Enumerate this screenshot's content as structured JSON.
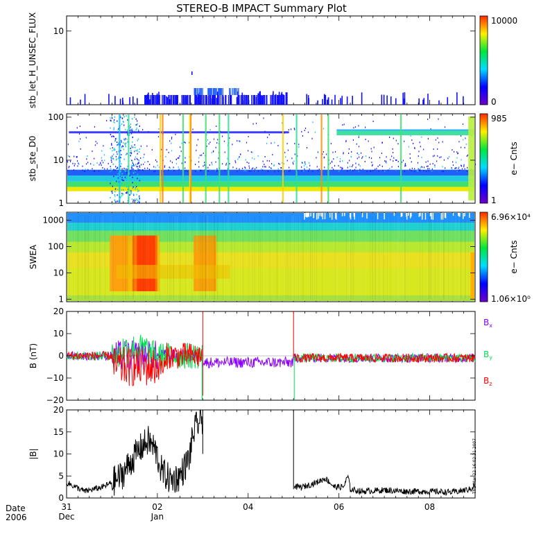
{
  "chart_data": {
    "title": "STEREO-B IMPACT Summary Plot",
    "date_label": "Date",
    "year_label": "2006",
    "time_axis": {
      "range_days": [
        0,
        9
      ],
      "ticks": [
        {
          "day": 0,
          "label": "31",
          "sublabel": "Dec"
        },
        {
          "day": 2,
          "label": "02",
          "sublabel": "Jan"
        },
        {
          "day": 4,
          "label": "04",
          "sublabel": ""
        },
        {
          "day": 6,
          "label": "06",
          "sublabel": ""
        },
        {
          "day": 8,
          "label": "08",
          "sublabel": ""
        }
      ],
      "minor_step": 0.25
    },
    "side_stamp": "Thu Mar 22 16:02:31 2007",
    "panels": [
      {
        "id": "let",
        "type": "heatmap",
        "ylabel": "stb_let_H_UNSEC_FLUX",
        "y_ticks": [
          {
            "value": 10,
            "label": "10"
          }
        ],
        "colorbar": {
          "max_label": "10000",
          "min_label": "0",
          "units": ""
        },
        "scale": "log"
      },
      {
        "id": "ste",
        "type": "heatmap",
        "ylabel": "stb_ste_D0",
        "y_ticks": [
          {
            "value": 100,
            "label": "100"
          },
          {
            "value": 10,
            "label": "10"
          },
          {
            "value": 1,
            "label": "1"
          }
        ],
        "colorbar": {
          "max_label": "985",
          "min_label": "1",
          "units": "e− Cnts"
        },
        "scale": "log"
      },
      {
        "id": "swea",
        "type": "heatmap",
        "ylabel": "SWEA",
        "y_ticks": [
          {
            "value": 1000,
            "label": "1000"
          },
          {
            "value": 100,
            "label": "100"
          },
          {
            "value": 10,
            "label": "10"
          },
          {
            "value": 1,
            "label": "1"
          }
        ],
        "colorbar": {
          "max_label": "6.96×10⁴",
          "min_label": "1.06×10⁰",
          "units": "e− Cnts"
        },
        "scale": "log"
      },
      {
        "id": "bvec",
        "type": "line",
        "ylabel": "B (nT)",
        "ylim": [
          -20,
          20
        ],
        "y_ticks": [
          {
            "value": 20,
            "label": "20"
          },
          {
            "value": 10,
            "label": "10"
          },
          {
            "value": 0,
            "label": "0"
          },
          {
            "value": -10,
            "label": "−10"
          },
          {
            "value": -20,
            "label": "−20"
          }
        ],
        "series": [
          {
            "name": "Bx",
            "letter": "B",
            "sub": "x",
            "color": "#8a00ff"
          },
          {
            "name": "By",
            "letter": "B",
            "sub": "y",
            "color": "#00e050"
          },
          {
            "name": "Bz",
            "letter": "B",
            "sub": "z",
            "color": "#ff0000"
          }
        ]
      },
      {
        "id": "bmag",
        "type": "line",
        "ylabel": "|B|",
        "ylim": [
          0,
          20
        ],
        "y_ticks": [
          {
            "value": 20,
            "label": "20"
          },
          {
            "value": 15,
            "label": "15"
          },
          {
            "value": 10,
            "label": "10"
          },
          {
            "value": 5,
            "label": "5"
          },
          {
            "value": 0,
            "label": "0"
          }
        ],
        "series": [
          {
            "name": "|B|",
            "color": "#000000",
            "points": [
              [
                0.0,
                3.5
              ],
              [
                0.2,
                2.5
              ],
              [
                0.4,
                1.5
              ],
              [
                0.6,
                2.0
              ],
              [
                0.8,
                2.5
              ],
              [
                1.0,
                3.5
              ],
              [
                1.2,
                5.0
              ],
              [
                1.4,
                8.0
              ],
              [
                1.6,
                11.0
              ],
              [
                1.8,
                13.0
              ],
              [
                1.95,
                11.0
              ],
              [
                2.1,
                6.0
              ],
              [
                2.3,
                4.0
              ],
              [
                2.5,
                5.0
              ],
              [
                2.7,
                9.0
              ],
              [
                2.8,
                15.0
              ],
              [
                2.9,
                17.0
              ],
              [
                3.0,
                18.0
              ],
              [
                5.0,
                20.0
              ],
              [
                5.0,
                2.5
              ],
              [
                5.2,
                2.5
              ],
              [
                5.5,
                3.5
              ],
              [
                5.7,
                4.5
              ],
              [
                5.9,
                2.5
              ],
              [
                6.1,
                2.5
              ],
              [
                6.2,
                5.0
              ],
              [
                6.25,
                2.0
              ],
              [
                6.5,
                1.5
              ],
              [
                7.0,
                1.8
              ],
              [
                7.5,
                1.5
              ],
              [
                8.0,
                1.5
              ],
              [
                8.5,
                1.3
              ],
              [
                8.9,
                2.0
              ],
              [
                9.0,
                3.0
              ]
            ]
          }
        ],
        "gaps": [
          [
            3.0,
            5.0
          ]
        ]
      }
    ]
  }
}
